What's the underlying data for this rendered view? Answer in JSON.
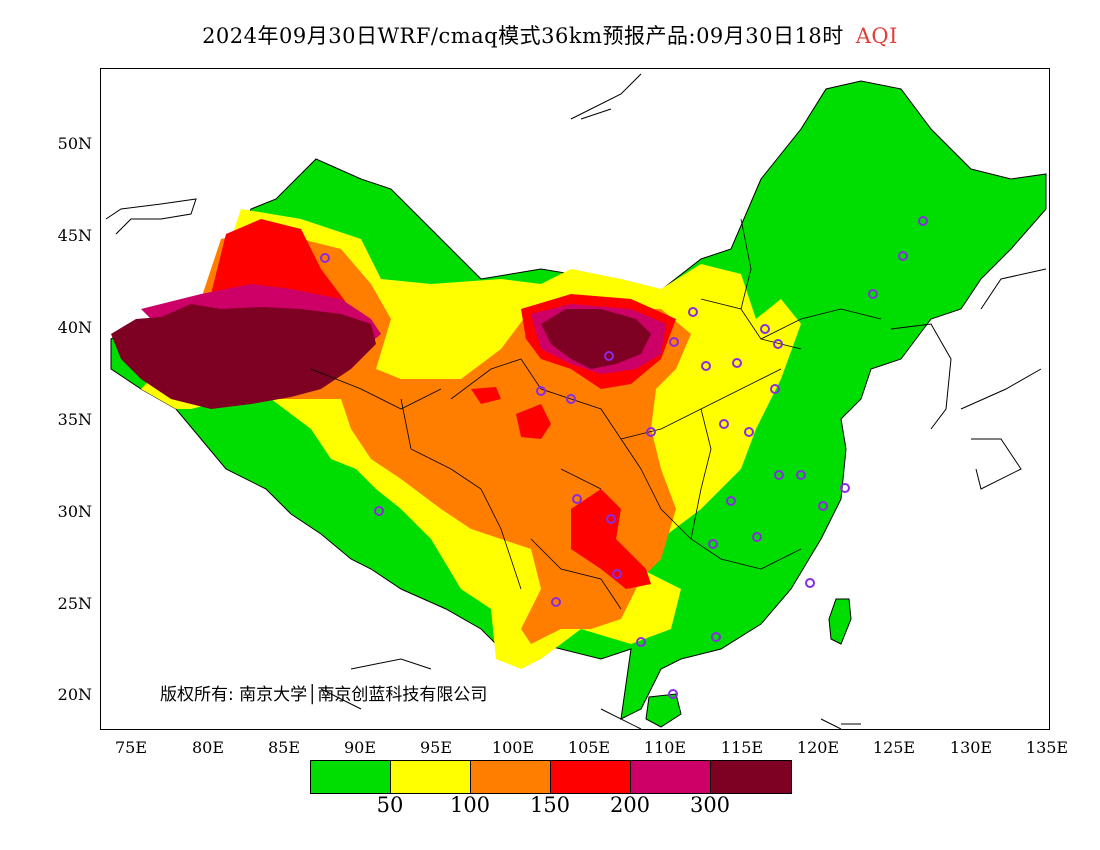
{
  "title": {
    "main": "2024年09月30日WRF/cmaq模式36km预报产品:09月30日18时",
    "variable": "AQI",
    "variable_color": "#e0403a"
  },
  "axes": {
    "y_labels": [
      "50N",
      "45N",
      "40N",
      "35N",
      "30N",
      "25N",
      "20N"
    ],
    "x_labels": [
      "75E",
      "80E",
      "85E",
      "90E",
      "95E",
      "100E",
      "105E",
      "110E",
      "115E",
      "120E",
      "125E",
      "130E",
      "135E"
    ]
  },
  "copyright": "版权所有: 南京大学│南京创蓝科技有限公司",
  "legend": {
    "colors": [
      "#00dd00",
      "#ffff00",
      "#ff7e00",
      "#ff0000",
      "#cc0066",
      "#7e0023"
    ],
    "labels": [
      "50",
      "100",
      "150",
      "200",
      "300"
    ]
  },
  "map": {
    "colors": {
      "good": "#00dd00",
      "moderate": "#ffff00",
      "usg": "#ff7e00",
      "unhealthy": "#ff0000",
      "very_unhealthy": "#cc0066",
      "hazardous": "#7e0023",
      "station": "#8a2be2",
      "border": "#000000"
    }
  }
}
